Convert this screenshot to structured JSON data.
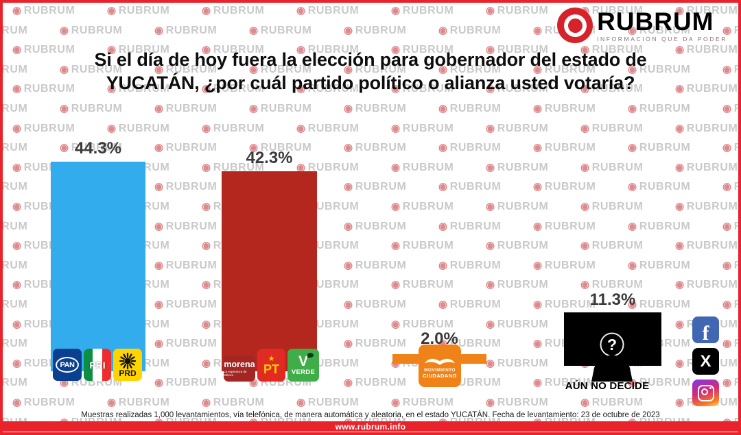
{
  "brand": {
    "name": "RUBRUM",
    "tagline": "INFORMACIÓN QUE DA PODER",
    "color": "#D6232B"
  },
  "watermark_text": "RUBRUM",
  "title": {
    "line1": "Si el día de hoy fuera la elección para gobernador del estado de",
    "line2": "YUCATÁN, ¿por cuál partido político o alianza usted votaría?"
  },
  "chart_data": {
    "type": "bar",
    "title": "Si el día de hoy fuera la elección para gobernador del estado de YUCATÁN, ¿por cuál partido político o alianza usted votaría?",
    "categories": [
      "PAN + PRI + PRD",
      "MORENA + PT + VERDE",
      "MOVIMIENTO CIUDADANO",
      "AÚN NO DECIDE"
    ],
    "values": [
      44.3,
      42.3,
      2.0,
      11.3
    ],
    "value_labels": [
      "44.3%",
      "42.3%",
      "2.0%",
      "11.3%"
    ],
    "colors": [
      "#33ACEE",
      "#B3271F",
      "#EF8318",
      "#000000"
    ],
    "unit": "%",
    "ylim": [
      0,
      50
    ],
    "grid": false,
    "legend": false,
    "annotations": [
      "AÚN NO DECIDE"
    ]
  },
  "logos": {
    "pan": "PAN",
    "pan_color": "#0B3F8F",
    "pri": "PRI",
    "pri_green": "#0A8F44",
    "pri_red": "#EE2D2D",
    "prd": "PRD",
    "prd_color": "#FFD400",
    "morena": "morena",
    "morena_tagline": "La esperanza de México",
    "morena_color": "#A32622",
    "pt": "PT",
    "pt_color": "#E02A22",
    "verde": "VERDE",
    "verde_color": "#3FAE49",
    "mc_line1": "MOVIMIENTO",
    "mc_line2": "CIUDADANO"
  },
  "undecided": {
    "label": "AÚN NO DECIDE",
    "question_mark": "?"
  },
  "footnote": "Muestras realizadas 1,000 levantamientos, vía telefónica, de manera automática y aleatoria, en el estado YUCATÁN. Fecha de levantamiento: 23 de octubre de 2023",
  "footer": {
    "url": "www.rubrum.info",
    "bar_color": "#E8232B"
  },
  "social": {
    "facebook": "f",
    "facebook_color": "#4267B2",
    "x": "X",
    "x_color": "#000000"
  }
}
